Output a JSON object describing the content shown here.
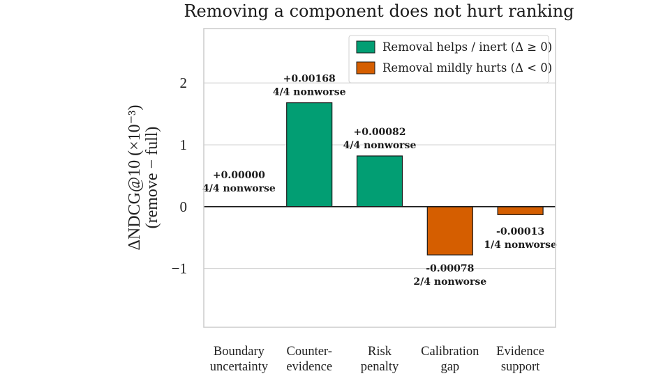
{
  "chart_data": {
    "type": "bar",
    "title": "Removing a component does not hurt ranking",
    "ylabel": [
      "ΔNDCG@10 (×10⁻³)",
      "(remove − full)"
    ],
    "xlabel": "",
    "categories": [
      "Boundary\nuncertainty",
      "Counter-\nevidence",
      "Risk\npenalty",
      "Calibration\ngap",
      "Evidence\nsupport"
    ],
    "values": [
      0.0,
      1.68,
      0.82,
      -0.78,
      -0.13
    ],
    "value_labels": [
      "+0.00000",
      "+0.00168",
      "+0.00082",
      "-0.00078",
      "-0.00013"
    ],
    "nonworse_labels": [
      "4/4 nonworse",
      "4/4 nonworse",
      "4/4 nonworse",
      "2/4 nonworse",
      "1/4 nonworse"
    ],
    "ylim": [
      -1.95,
      2.88
    ],
    "yticks": [
      -1,
      0,
      1,
      2
    ],
    "ytick_labels": [
      "−1",
      "0",
      "1",
      "2"
    ],
    "grid": "horizontal",
    "legend_position": "top-right",
    "legend": [
      {
        "label": "Removal helps / inert (Δ ≥ 0)",
        "color": "#029e73"
      },
      {
        "label": "Removal mildly hurts (Δ < 0)",
        "color": "#d55e00"
      }
    ],
    "colors": {
      "positive": "#029e73",
      "negative": "#d55e00"
    }
  }
}
